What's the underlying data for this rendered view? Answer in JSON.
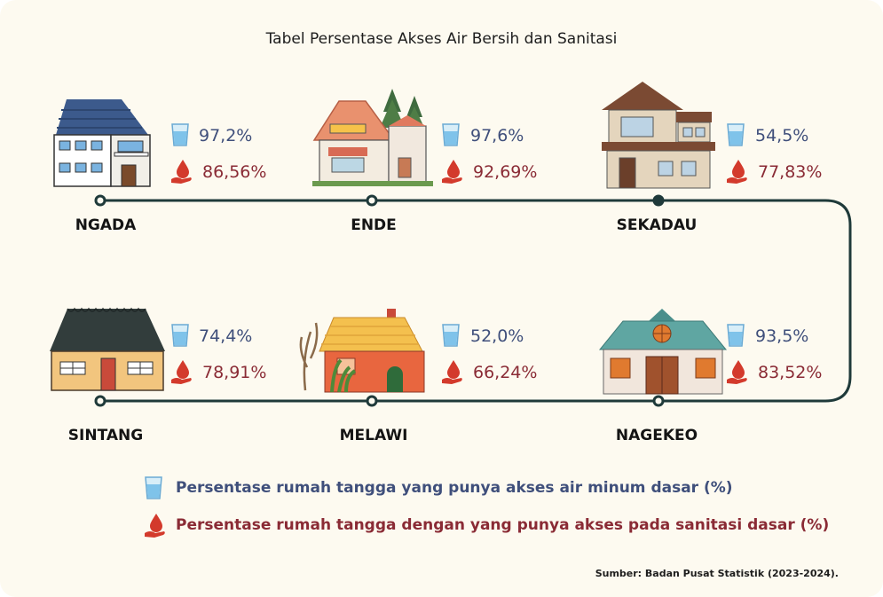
{
  "title": "Tabel Persentase Akses Air Bersih dan Sanitasi",
  "regions": [
    {
      "name": "NGADA",
      "water": "97,2%",
      "sanitation": "86,56%"
    },
    {
      "name": "ENDE",
      "water": "97,6%",
      "sanitation": "92,69%"
    },
    {
      "name": "SEKADAU",
      "water": "54,5%",
      "sanitation": "77,83%"
    },
    {
      "name": "SINTANG",
      "water": "74,4%",
      "sanitation": "78,91%"
    },
    {
      "name": "MELAWI",
      "water": "52,0%",
      "sanitation": "66,24%"
    },
    {
      "name": "NAGEKEO",
      "water": "93,5%",
      "sanitation": "83,52%"
    }
  ],
  "legend": {
    "water": "Persentase rumah tangga yang punya akses air minum dasar (%)",
    "sanitation": "Persentase rumah tangga dengan yang punya akses pada sanitasi dasar (%)"
  },
  "source": "Sumber: Badan Pusat Statistik (2023-2024).",
  "colors": {
    "water_text": "#3f4f7b",
    "sanitation_text": "#8a2b35",
    "route": "#1f3a3a",
    "background": "#fdfaf0"
  },
  "icons": {
    "water": "water-glass-icon",
    "sanitation": "water-drop-hand-icon"
  }
}
